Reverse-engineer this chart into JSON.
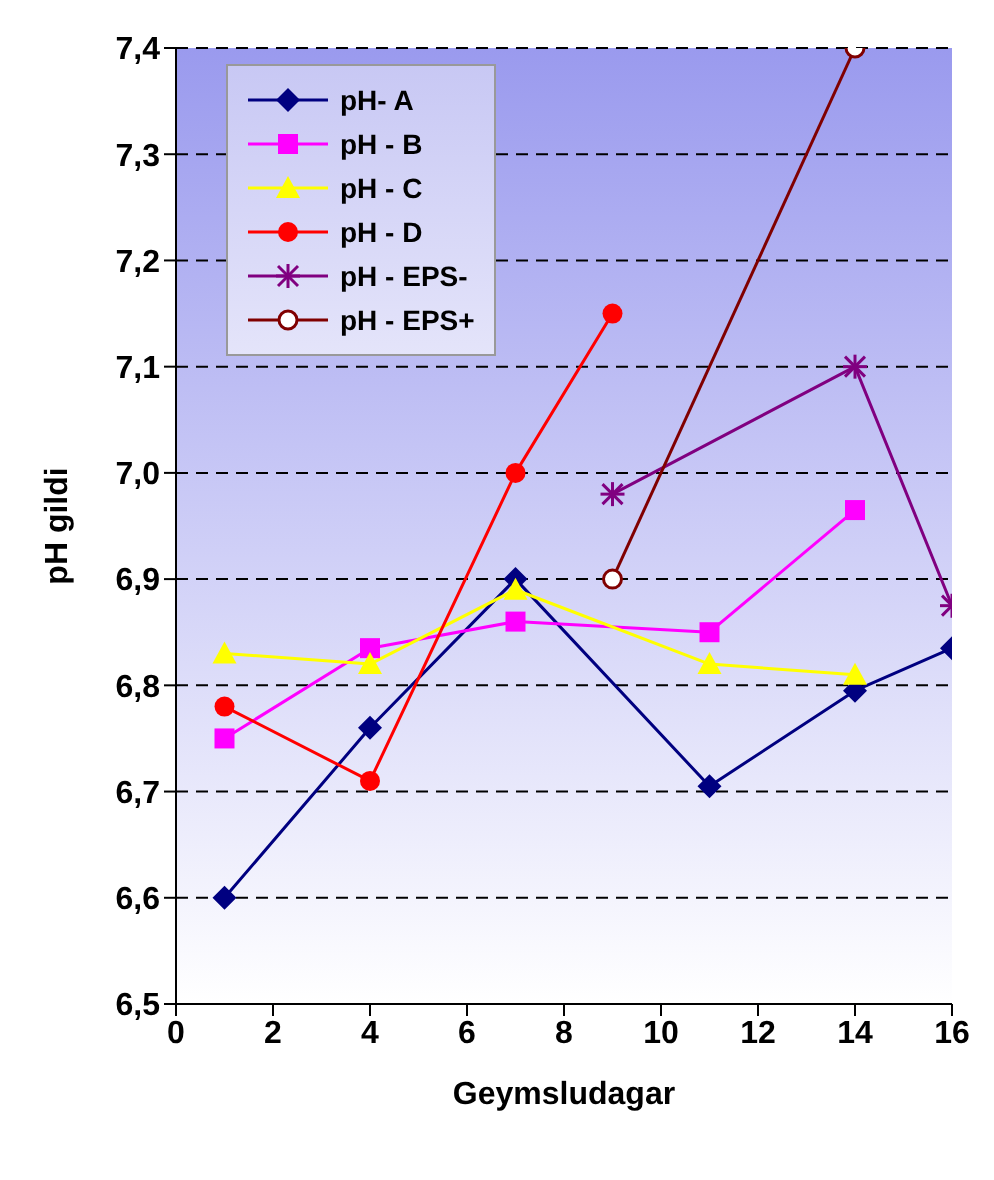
{
  "chart_data": {
    "type": "line",
    "xlabel": "Geymsludagar",
    "ylabel": "pH gildi",
    "xlim": [
      0,
      16
    ],
    "xticks": [
      0,
      2,
      4,
      6,
      8,
      10,
      12,
      14,
      16
    ],
    "ylim": [
      6.5,
      7.4
    ],
    "yticks": [
      {
        "value": 6.5,
        "label": "6,5"
      },
      {
        "value": 6.6,
        "label": "6,6"
      },
      {
        "value": 6.7,
        "label": "6,7"
      },
      {
        "value": 6.8,
        "label": "6,8"
      },
      {
        "value": 6.9,
        "label": "6,9"
      },
      {
        "value": 7.0,
        "label": "7,0"
      },
      {
        "value": 7.1,
        "label": "7,1"
      },
      {
        "value": 7.2,
        "label": "7,2"
      },
      {
        "value": 7.3,
        "label": "7,3"
      },
      {
        "value": 7.4,
        "label": "7,4"
      }
    ],
    "grid": "y",
    "legend": "top left",
    "series": [
      {
        "name": "pH- A",
        "color": "#000080",
        "marker": "diamond",
        "x": [
          1,
          4,
          7,
          11,
          14,
          16
        ],
        "values": [
          6.6,
          6.76,
          6.9,
          6.705,
          6.795,
          6.835
        ]
      },
      {
        "name": "pH - B",
        "color": "#ff00ff",
        "marker": "square",
        "x": [
          1,
          4,
          7,
          11,
          14
        ],
        "values": [
          6.75,
          6.835,
          6.86,
          6.85,
          6.965
        ]
      },
      {
        "name": "pH - C",
        "color": "#ffff00",
        "marker": "triangle",
        "x": [
          1,
          4,
          7,
          11,
          14
        ],
        "values": [
          6.83,
          6.82,
          6.89,
          6.82,
          6.81
        ]
      },
      {
        "name": "pH - D",
        "color": "#ff0000",
        "marker": "circle",
        "x": [
          1,
          4,
          7,
          9
        ],
        "values": [
          6.78,
          6.71,
          7.0,
          7.15
        ]
      },
      {
        "name": "pH - EPS-",
        "color": "#800080",
        "marker": "cross",
        "x": [
          9,
          14,
          16
        ],
        "values": [
          6.98,
          7.1,
          6.875
        ]
      },
      {
        "name": "pH - EPS+",
        "color": "#800000",
        "marker": "open-circle",
        "x": [
          9,
          14
        ],
        "values": [
          6.9,
          7.4
        ]
      }
    ]
  }
}
